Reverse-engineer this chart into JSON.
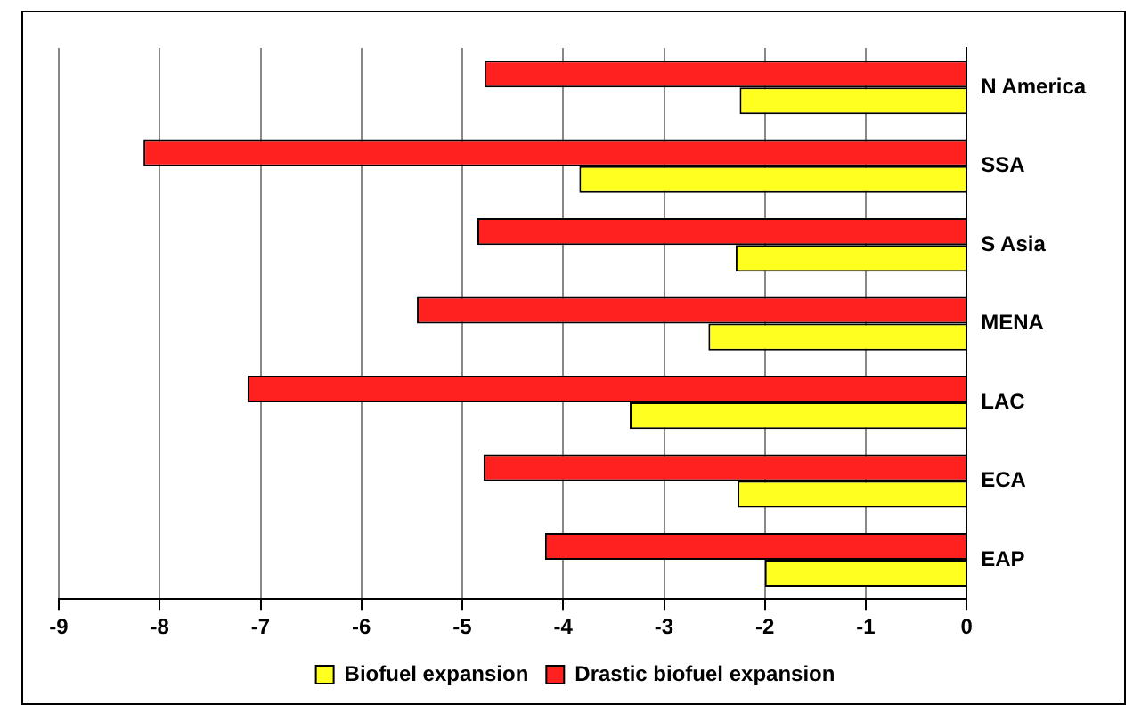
{
  "chart_data": {
    "type": "bar",
    "orientation": "horizontal",
    "categories": [
      "N America",
      "SSA",
      "S Asia",
      "MENA",
      "LAC",
      "ECA",
      "EAP"
    ],
    "series": [
      {
        "name": "Drastic biofuel expansion",
        "color": "#ff2020",
        "values": [
          -4.78,
          -8.16,
          -4.85,
          -5.45,
          -7.13,
          -4.79,
          -4.18
        ]
      },
      {
        "name": "Biofuel expansion",
        "color": "#ffff20",
        "values": [
          -2.25,
          -3.84,
          -2.29,
          -2.56,
          -3.34,
          -2.27,
          -2.0
        ]
      }
    ],
    "xlim": [
      -9,
      0
    ],
    "xticks": [
      -9,
      -8,
      -7,
      -6,
      -5,
      -4,
      -3,
      -2,
      -1,
      0
    ],
    "grid": "x",
    "legend": "bottom"
  }
}
